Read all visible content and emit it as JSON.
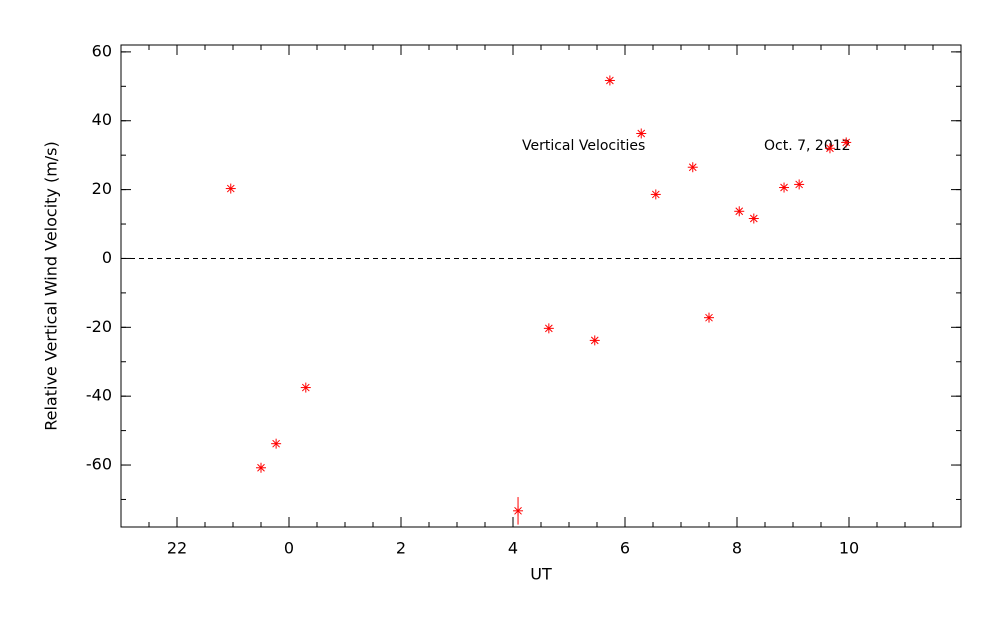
{
  "chart_data": {
    "type": "scatter",
    "xlabel": "UT",
    "ylabel": "Relative Vertical Wind Velocity (m/s)",
    "annotations": [
      "Vertical Velocities",
      "Oct. 7, 2012"
    ],
    "x": [
      -1.04,
      -0.5,
      -0.23,
      0.3,
      4.09,
      4.64,
      5.46,
      5.73,
      6.29,
      6.55,
      7.21,
      7.5,
      8.04,
      8.3,
      8.84,
      9.11,
      9.66,
      9.95
    ],
    "values": [
      20.3,
      -60.8,
      -53.8,
      -37.5,
      -73.3,
      -20.3,
      -23.8,
      51.7,
      36.3,
      18.6,
      26.5,
      -17.2,
      13.7,
      11.6,
      20.6,
      21.5,
      32.0,
      33.7
    ],
    "errors": [
      null,
      null,
      null,
      null,
      4,
      null,
      null,
      null,
      null,
      null,
      null,
      null,
      null,
      null,
      null,
      null,
      null,
      null
    ],
    "color": "#ff0000",
    "xlim": [
      -3,
      12
    ],
    "ylim": [
      -78,
      62
    ],
    "xticks": [
      {
        "value": -2,
        "label": "22"
      },
      0,
      2,
      4,
      6,
      8,
      10
    ],
    "yticks": [
      -60,
      -40,
      -20,
      0,
      20,
      40,
      60
    ],
    "x_minor_per_major": 4,
    "y_minor_per_major": 2,
    "hline": 0
  }
}
